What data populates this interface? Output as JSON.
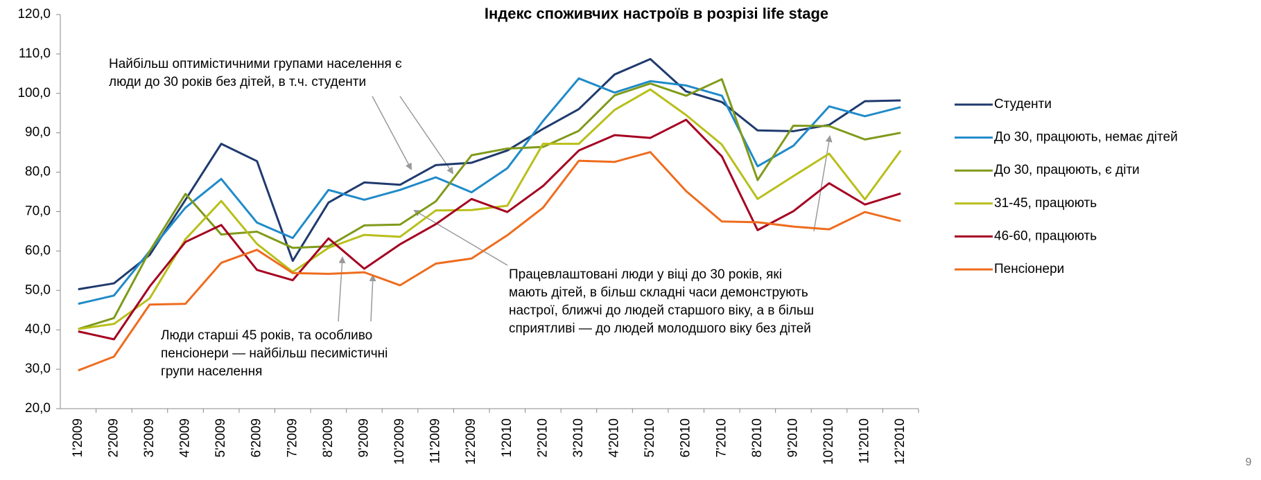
{
  "chart_data": {
    "type": "line",
    "title": "Індекс споживчих настроїв в розрізі life stage",
    "categories": [
      "1'2009",
      "2'2009",
      "3'2009",
      "4'2009",
      "5'2009",
      "6'2009",
      "7'2009",
      "8'2009",
      "9'2009",
      "10'2009",
      "11'2009",
      "12'2009",
      "1'2010",
      "2'2010",
      "3'2010",
      "4'2010",
      "5'2010",
      "6'2010",
      "7'2010",
      "8'2010",
      "9'2010",
      "10'2010",
      "11'2010",
      "12'2010"
    ],
    "series": [
      {
        "name": "Студенти",
        "color": "#1f3a6e",
        "values": [
          50.3,
          51.8,
          59,
          73,
          87.2,
          82.8,
          57.5,
          72.3,
          77.4,
          76.8,
          81.8,
          82.4,
          85.5,
          91,
          96,
          104.8,
          108.7,
          100.5,
          97.8,
          90.6,
          90.4,
          92,
          98,
          98.2
        ]
      },
      {
        "name": "До 30, працюють, немає дітей",
        "color": "#1f8ac8",
        "values": [
          46.6,
          48.7,
          60,
          71,
          78.3,
          67.2,
          63.3,
          75.5,
          73,
          75.5,
          78.7,
          74.9,
          81,
          93,
          103.8,
          100.2,
          103.1,
          102,
          99.4,
          81.5,
          86.7,
          96.7,
          94.2,
          96.5
        ]
      },
      {
        "name": "До 30, працюють, є діти",
        "color": "#7f9a1a",
        "values": [
          40.2,
          43,
          60,
          74.5,
          64.2,
          64.9,
          60.8,
          61.2,
          66.5,
          66.7,
          72.6,
          84.3,
          86,
          86.4,
          90.5,
          99.5,
          102.5,
          99.4,
          103.6,
          78,
          91.8,
          91.7,
          88.3,
          90
        ]
      },
      {
        "name": "31-45, працюють",
        "color": "#b8bf1a",
        "values": [
          40.2,
          41.5,
          48,
          63,
          72.7,
          61.8,
          54.7,
          60.8,
          64.1,
          63.6,
          70.3,
          70.4,
          71.5,
          87.2,
          87.2,
          95.8,
          101,
          94.5,
          87,
          73.2,
          79,
          84.7,
          73.1,
          85.5
        ]
      },
      {
        "name": "46-60, працюють",
        "color": "#a50021",
        "values": [
          39.6,
          37.6,
          51,
          62.3,
          66.6,
          55.2,
          52.6,
          63.2,
          55.5,
          61.7,
          66.8,
          73.2,
          69.9,
          76.5,
          85.5,
          89.4,
          88.7,
          93.3,
          84,
          65.3,
          70.1,
          77.2,
          71.8,
          74.6
        ]
      },
      {
        "name": "Пенсіонери",
        "color": "#ee6c1e",
        "values": [
          29.7,
          33.2,
          46.4,
          46.6,
          57,
          60.3,
          54.4,
          54.2,
          54.6,
          51.3,
          56.8,
          58.1,
          64,
          71,
          82.9,
          82.6,
          85.1,
          75.2,
          67.5,
          67.3,
          66.2,
          65.5,
          69.9,
          67.6
        ]
      }
    ],
    "ylim": [
      20,
      120
    ],
    "yticks": [
      {
        "value": 20,
        "label": "20,0"
      },
      {
        "value": 30,
        "label": "30,0"
      },
      {
        "value": 40,
        "label": "40,0"
      },
      {
        "value": 50,
        "label": "50,0"
      },
      {
        "value": 60,
        "label": "60,0"
      },
      {
        "value": 70,
        "label": "70,0"
      },
      {
        "value": 80,
        "label": "80,0"
      },
      {
        "value": 90,
        "label": "90,0"
      },
      {
        "value": 100,
        "label": "100,0"
      },
      {
        "value": 110,
        "label": "110,0"
      },
      {
        "value": 120,
        "label": "120,0"
      }
    ],
    "legend": "right",
    "annotations": [
      {
        "lines": [
          "Найбільш оптимістичними групами населення є",
          "люди до 30 років без дітей, в т.ч. студенти"
        ]
      },
      {
        "lines": [
          "Люди старші 45 років, та особливо",
          "пенсіонери — найбільш песимістичні",
          "групи населення"
        ]
      },
      {
        "lines": [
          "Працевлаштовані люди у віці до 30 років, які",
          "мають дітей, в більш складні часи демонструють",
          "настрої, ближчі до людей старшого віку, а в більш",
          "сприятливі — до людей молодшого віку без дітей"
        ]
      }
    ]
  },
  "page_number": "9"
}
